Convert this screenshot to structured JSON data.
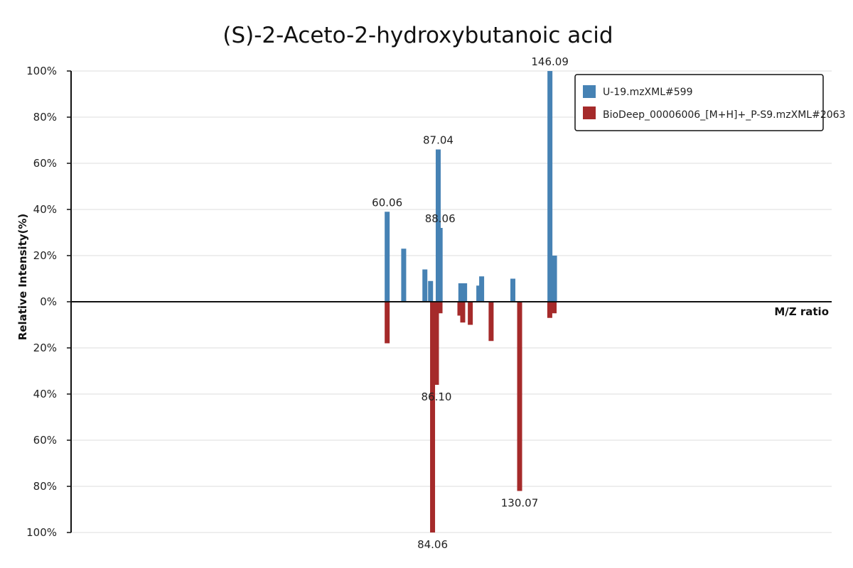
{
  "chart_data": {
    "type": "bar",
    "title": "(S)-2-Aceto-2-hydroxybutanoic acid",
    "xlabel": "M/Z ratio",
    "ylabel": "Relative Intensity(%)",
    "xlim": [
      -107,
      295
    ],
    "ylim_top": [
      0,
      100
    ],
    "ylim_bottom": [
      0,
      100
    ],
    "y_ticks_top": [
      "100%",
      "80%",
      "60%",
      "40%",
      "20%",
      "0%"
    ],
    "y_ticks_bottom": [
      "20%",
      "40%",
      "60%",
      "80%",
      "100%"
    ],
    "grid": true,
    "legend_position": "top-right",
    "colors": {
      "top": "#4682b4",
      "bottom": "#a52a2a"
    },
    "series": [
      {
        "name": "U-19.mzXML#599",
        "direction": "up",
        "points": [
          {
            "x": 60.06,
            "y": 39,
            "label": "60.06"
          },
          {
            "x": 68.8,
            "y": 23
          },
          {
            "x": 80.0,
            "y": 14
          },
          {
            "x": 83.0,
            "y": 9
          },
          {
            "x": 87.04,
            "y": 66,
            "label": "87.04"
          },
          {
            "x": 88.06,
            "y": 32,
            "label": "88.06"
          },
          {
            "x": 99.0,
            "y": 8
          },
          {
            "x": 101.0,
            "y": 8
          },
          {
            "x": 108.5,
            "y": 7
          },
          {
            "x": 110.0,
            "y": 11
          },
          {
            "x": 126.5,
            "y": 10
          },
          {
            "x": 146.09,
            "y": 100,
            "label": "146.09"
          },
          {
            "x": 148.5,
            "y": 20
          }
        ]
      },
      {
        "name": "BioDeep_00006006_[M+H]+_P-S9.mzXML#2063",
        "direction": "down",
        "points": [
          {
            "x": 60.06,
            "y": 18
          },
          {
            "x": 84.06,
            "y": 100,
            "label": "84.06"
          },
          {
            "x": 86.1,
            "y": 36,
            "label": "86.10"
          },
          {
            "x": 88.0,
            "y": 5
          },
          {
            "x": 98.5,
            "y": 6
          },
          {
            "x": 100.0,
            "y": 9
          },
          {
            "x": 104.0,
            "y": 10
          },
          {
            "x": 115.0,
            "y": 17
          },
          {
            "x": 130.07,
            "y": 82,
            "label": "130.07"
          },
          {
            "x": 146.0,
            "y": 7
          },
          {
            "x": 148.3,
            "y": 5
          }
        ]
      }
    ]
  }
}
